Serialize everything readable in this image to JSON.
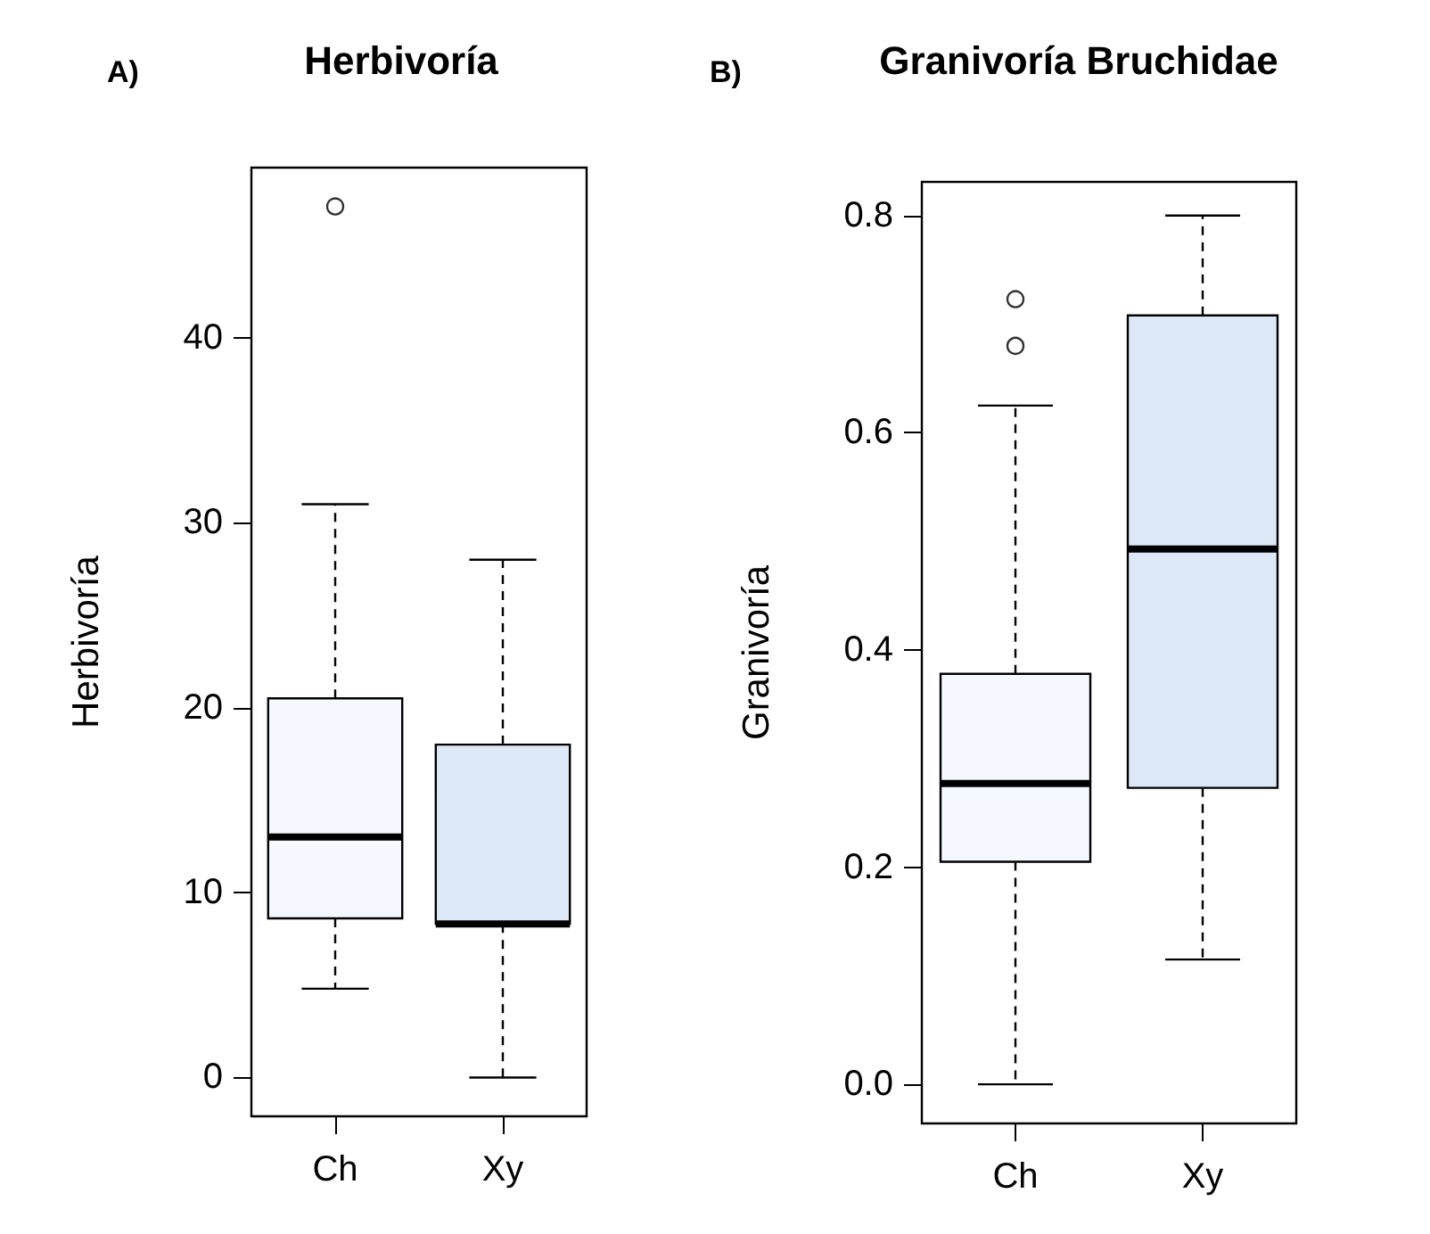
{
  "chart_data": [
    {
      "type": "box",
      "title": "Herbivoría",
      "ylabel": "Herbivoría",
      "annotations": [
        "A)"
      ],
      "categories": [
        "Ch",
        "Xy"
      ],
      "colors": [
        "#f5f9ff",
        "#dce8f5"
      ],
      "ylim": [
        -2.1,
        49.2
      ],
      "yticks": [
        0,
        10,
        20,
        30,
        40
      ],
      "grid": false,
      "legend": false,
      "boxes": [
        {
          "low": 4.8,
          "q1": 8.6,
          "median": 13,
          "q3": 20.5,
          "high": 31,
          "outliers": [
            47.1
          ]
        },
        {
          "low": 0,
          "q1": 8.3,
          "median": 8.3,
          "q3": 18,
          "high": 28
        }
      ]
    },
    {
      "type": "box",
      "title": "Granivoría Bruchidae",
      "ylabel": "Granivoría",
      "annotations": [
        "B)"
      ],
      "categories": [
        "Ch",
        "Xy"
      ],
      "colors": [
        "#f5f9ff",
        "#dce8f5"
      ],
      "ylim": [
        -0.036,
        0.831
      ],
      "yticks": [
        {
          "value": 0,
          "label": "0.0"
        },
        {
          "value": 0.2,
          "label": "0.2"
        },
        {
          "value": 0.4,
          "label": "0.4"
        },
        {
          "value": 0.6,
          "label": "0.6"
        },
        {
          "value": 0.8,
          "label": "0.8"
        }
      ],
      "grid": false,
      "legend": false,
      "boxes": [
        {
          "low": 0,
          "q1": 0.205,
          "median": 0.277,
          "q3": 0.378,
          "high": 0.625,
          "outliers": [
            0.68,
            0.723
          ]
        },
        {
          "low": 0.115,
          "q1": 0.273,
          "median": 0.493,
          "q3": 0.708,
          "high": 0.8
        }
      ]
    }
  ]
}
